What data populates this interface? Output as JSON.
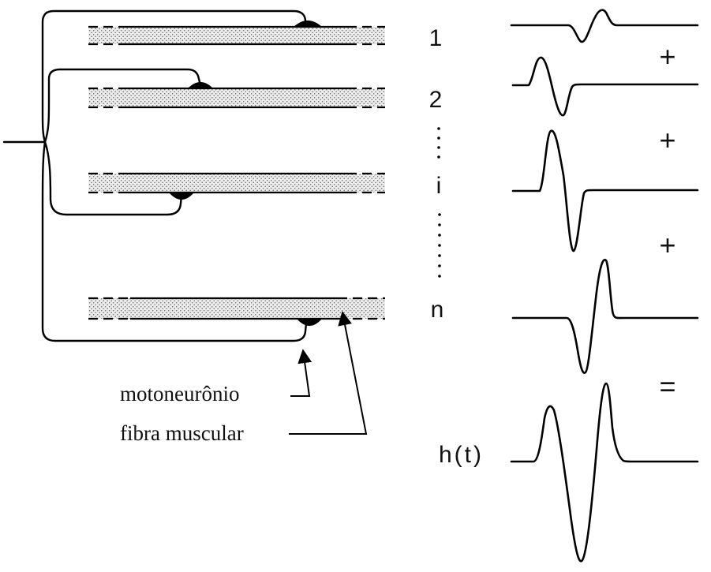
{
  "fibers": [
    {
      "label": "1"
    },
    {
      "label": "2"
    },
    {
      "label": "i"
    },
    {
      "label": "n"
    }
  ],
  "operators": [
    "+",
    "+",
    "+",
    "="
  ],
  "result_label": "h(t)",
  "callouts": {
    "motoneuron": "motoneurônio",
    "muscle_fiber": "fibra muscular"
  }
}
